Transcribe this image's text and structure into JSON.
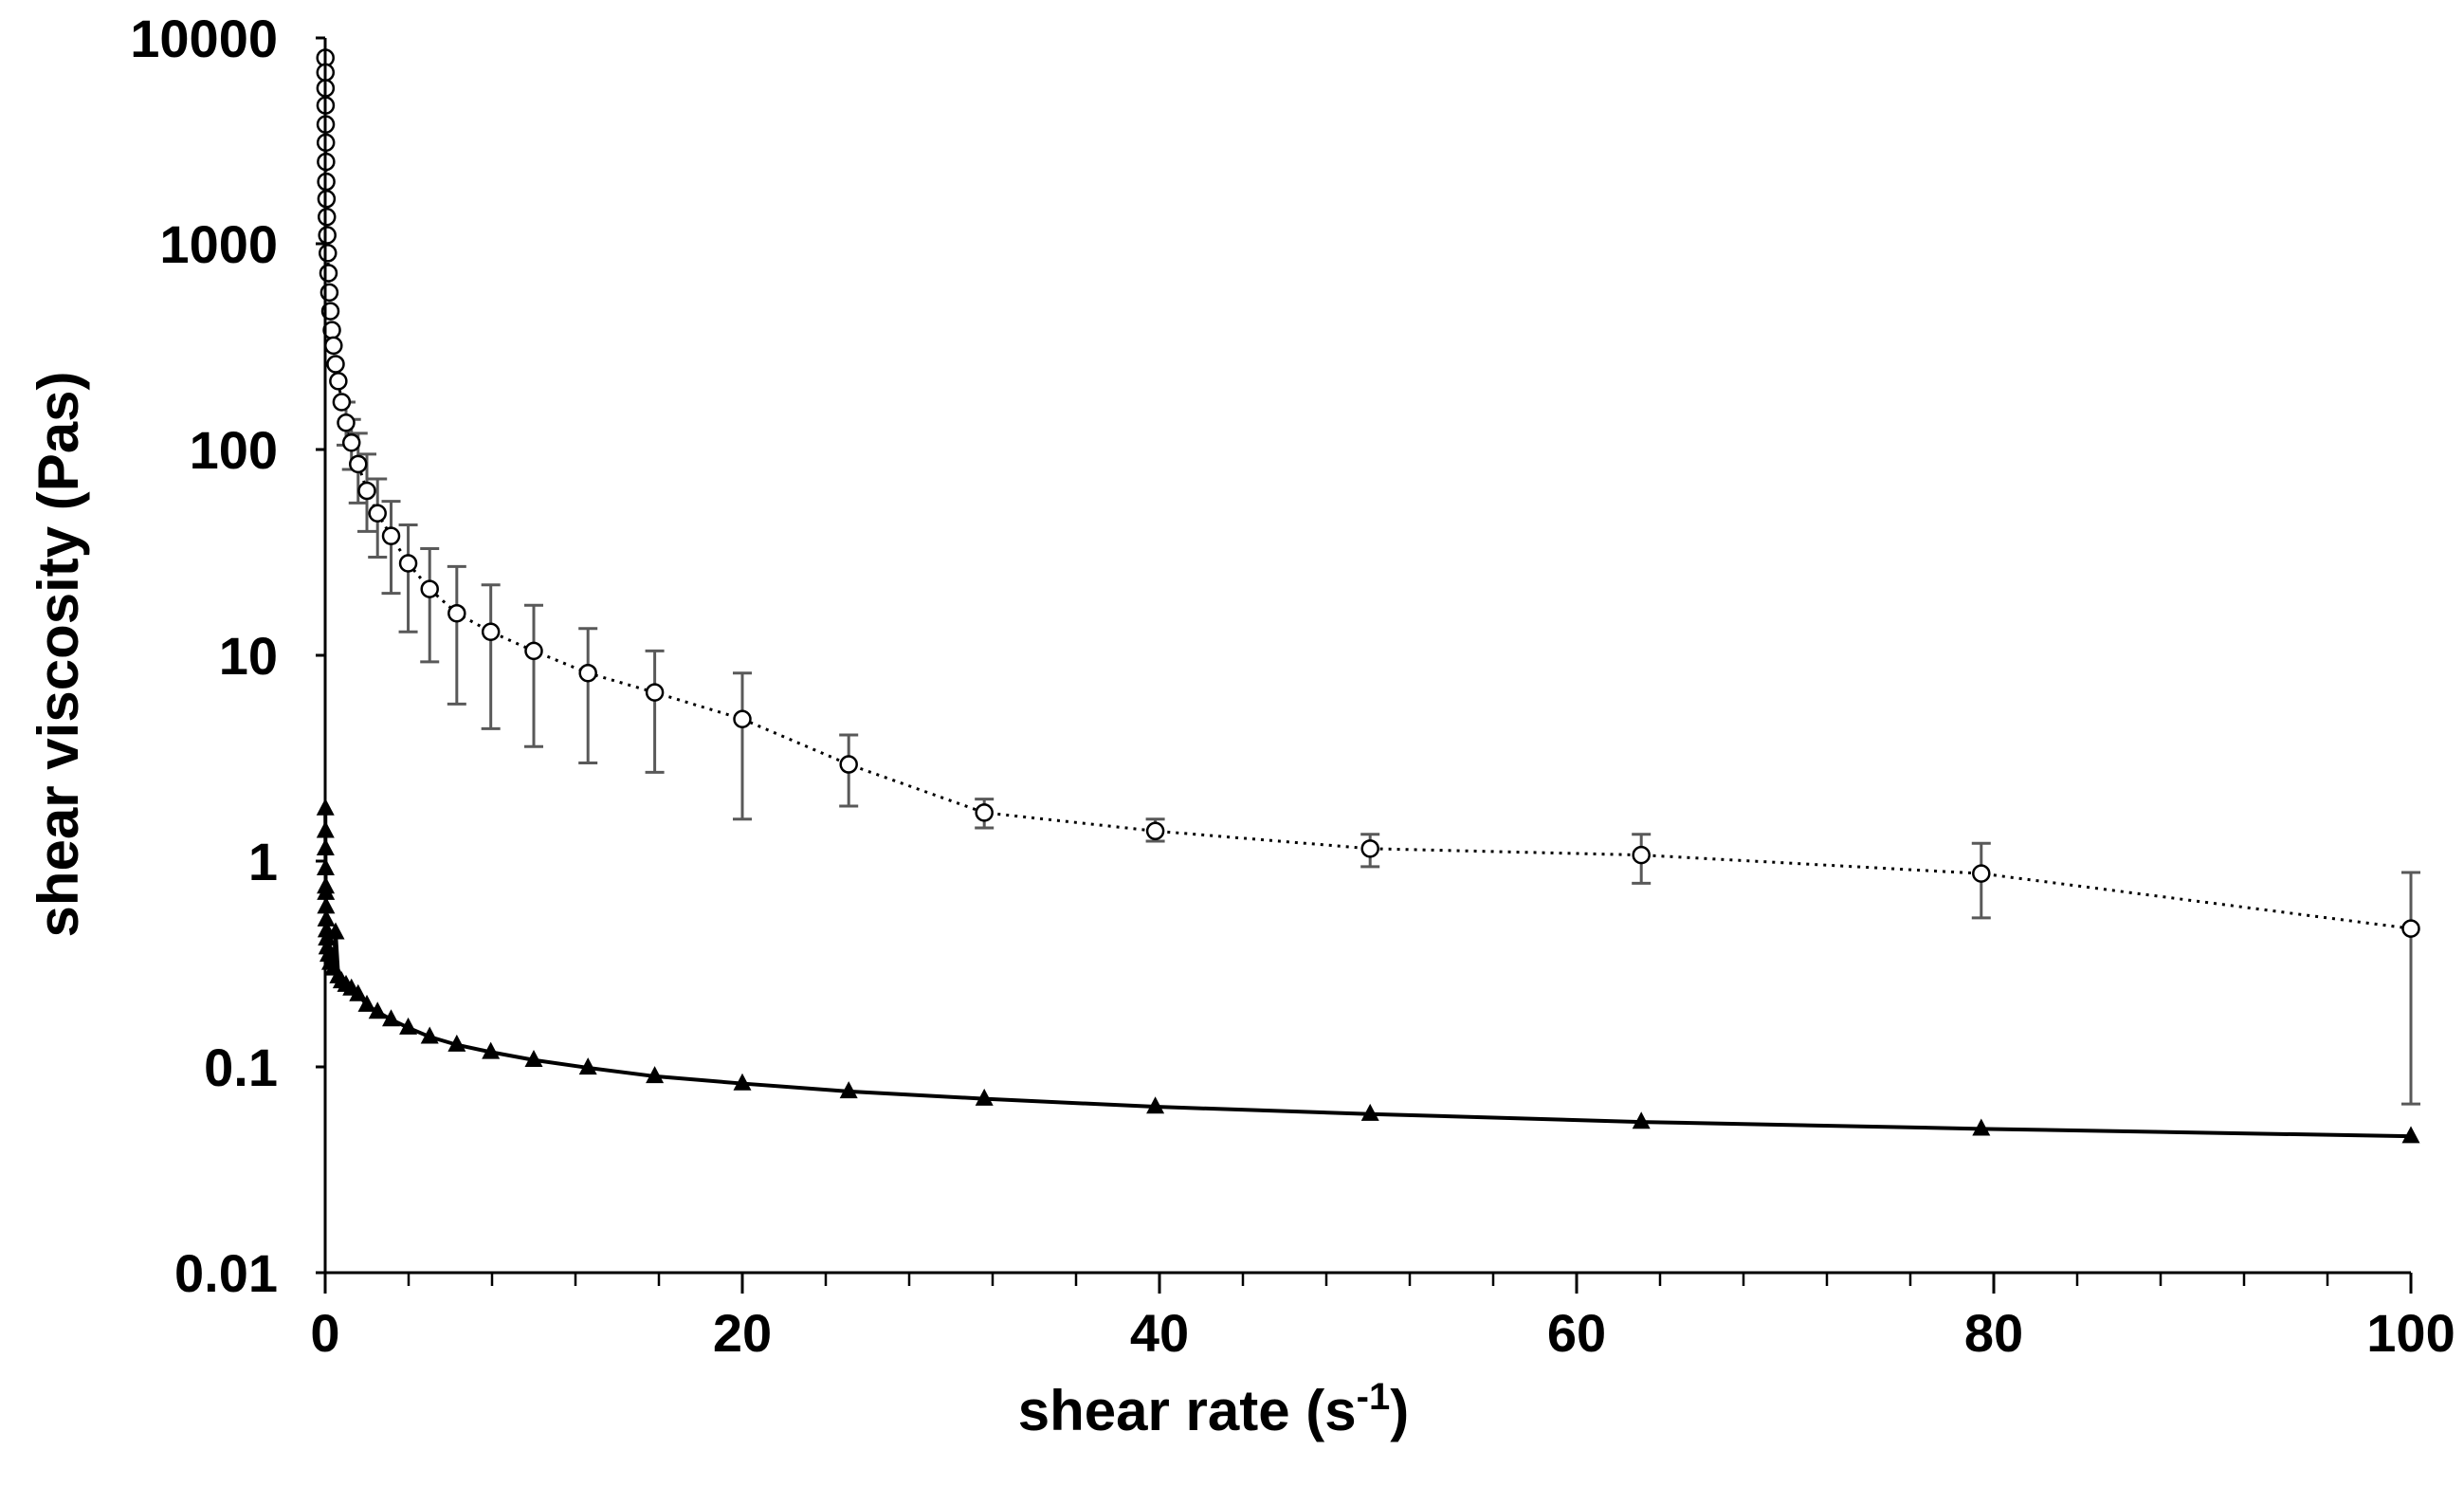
{
  "chart_data": {
    "type": "scatter",
    "xlabel": "shear rate (s",
    "xlabel_sup": "-1",
    "xlabel_tail": ")",
    "ylabel": "shear viscosity (Pas)",
    "xlim": [
      0,
      100
    ],
    "ylim": [
      0.01,
      10000
    ],
    "yscale": "log",
    "grid": false,
    "x_ticks": [
      "0",
      "20",
      "40",
      "60",
      "80",
      "100"
    ],
    "y_ticks": [
      "0.01",
      "0.1",
      "1",
      "10",
      "100",
      "1000",
      "10000"
    ],
    "series": [
      {
        "marker": "open-circle",
        "line": "dotted",
        "points": [
          {
            "x": 0.01,
            "y": 8000
          },
          {
            "x": 0.013,
            "y": 6800
          },
          {
            "x": 0.016,
            "y": 5700
          },
          {
            "x": 0.02,
            "y": 4700
          },
          {
            "x": 0.025,
            "y": 3800
          },
          {
            "x": 0.032,
            "y": 3100
          },
          {
            "x": 0.04,
            "y": 2500
          },
          {
            "x": 0.05,
            "y": 2000
          },
          {
            "x": 0.063,
            "y": 1650
          },
          {
            "x": 0.079,
            "y": 1350
          },
          {
            "x": 0.1,
            "y": 1100
          },
          {
            "x": 0.126,
            "y": 900
          },
          {
            "x": 0.158,
            "y": 720
          },
          {
            "x": 0.2,
            "y": 580
          },
          {
            "x": 0.25,
            "y": 470
          },
          {
            "x": 0.32,
            "y": 380
          },
          {
            "x": 0.4,
            "y": 320
          },
          {
            "x": 0.5,
            "y": 260
          },
          {
            "x": 0.63,
            "y": 215
          },
          {
            "x": 0.79,
            "y": 170
          },
          {
            "x": 1.0,
            "y": 135,
            "err": [
              105,
              170
            ]
          },
          {
            "x": 1.26,
            "y": 108,
            "err": [
              80,
              140
            ]
          },
          {
            "x": 1.58,
            "y": 85,
            "err": [
              55,
              120
            ]
          },
          {
            "x": 2.0,
            "y": 63,
            "err": [
              40,
              95
            ]
          },
          {
            "x": 2.51,
            "y": 49,
            "err": [
              30,
              72
            ]
          },
          {
            "x": 3.16,
            "y": 38,
            "err": [
              20,
              56
            ]
          },
          {
            "x": 3.98,
            "y": 28,
            "err": [
              13,
              43
            ]
          },
          {
            "x": 5.01,
            "y": 21,
            "err": [
              9.3,
              33
            ]
          },
          {
            "x": 6.31,
            "y": 16,
            "err": [
              5.8,
              27
            ]
          },
          {
            "x": 7.94,
            "y": 13,
            "err": [
              4.4,
              22
            ]
          },
          {
            "x": 10.0,
            "y": 10.5,
            "err": [
              3.6,
              17.5
            ]
          },
          {
            "x": 12.6,
            "y": 8.2,
            "err": [
              3.0,
              13.5
            ]
          },
          {
            "x": 15.8,
            "y": 6.6,
            "err": [
              2.7,
              10.5
            ]
          },
          {
            "x": 20.0,
            "y": 4.9,
            "err": [
              1.6,
              8.2
            ]
          },
          {
            "x": 25.1,
            "y": 2.95,
            "err": [
              1.85,
              4.1
            ]
          },
          {
            "x": 31.6,
            "y": 1.72,
            "err": [
              1.45,
              2.0
            ]
          },
          {
            "x": 39.8,
            "y": 1.4,
            "err": [
              1.25,
              1.6
            ]
          },
          {
            "x": 50.1,
            "y": 1.15,
            "err": [
              0.94,
              1.35
            ]
          },
          {
            "x": 63.1,
            "y": 1.07,
            "err": [
              0.78,
              1.35
            ]
          },
          {
            "x": 79.4,
            "y": 0.87,
            "err": [
              0.53,
              1.22
            ]
          },
          {
            "x": 100.0,
            "y": 0.47,
            "err": [
              0.066,
              0.88
            ]
          }
        ]
      },
      {
        "marker": "filled-triangle",
        "line": "solid",
        "points": [
          {
            "x": 0.01,
            "y": 1.8
          },
          {
            "x": 0.013,
            "y": 1.4
          },
          {
            "x": 0.016,
            "y": 1.15
          },
          {
            "x": 0.02,
            "y": 0.92
          },
          {
            "x": 0.025,
            "y": 0.75
          },
          {
            "x": 0.032,
            "y": 0.7
          },
          {
            "x": 0.04,
            "y": 0.6
          },
          {
            "x": 0.05,
            "y": 0.52
          },
          {
            "x": 0.063,
            "y": 0.46
          },
          {
            "x": 0.079,
            "y": 0.42
          },
          {
            "x": 0.1,
            "y": 0.38
          },
          {
            "x": 0.158,
            "y": 0.35
          },
          {
            "x": 0.25,
            "y": 0.32
          },
          {
            "x": 0.4,
            "y": 0.3
          },
          {
            "x": 0.5,
            "y": 0.45
          },
          {
            "x": 0.63,
            "y": 0.275
          },
          {
            "x": 0.79,
            "y": 0.26
          },
          {
            "x": 1.0,
            "y": 0.25
          },
          {
            "x": 1.26,
            "y": 0.24
          },
          {
            "x": 1.58,
            "y": 0.225
          },
          {
            "x": 2.0,
            "y": 0.2
          },
          {
            "x": 2.51,
            "y": 0.185
          },
          {
            "x": 3.16,
            "y": 0.17
          },
          {
            "x": 3.98,
            "y": 0.155
          },
          {
            "x": 5.01,
            "y": 0.14
          },
          {
            "x": 6.31,
            "y": 0.128
          },
          {
            "x": 7.94,
            "y": 0.118
          },
          {
            "x": 10.0,
            "y": 0.108
          },
          {
            "x": 12.6,
            "y": 0.099
          },
          {
            "x": 15.8,
            "y": 0.09
          },
          {
            "x": 20.0,
            "y": 0.083
          },
          {
            "x": 25.1,
            "y": 0.076
          },
          {
            "x": 31.6,
            "y": 0.07
          },
          {
            "x": 39.8,
            "y": 0.064
          },
          {
            "x": 50.1,
            "y": 0.059
          },
          {
            "x": 63.1,
            "y": 0.054
          },
          {
            "x": 79.4,
            "y": 0.05
          },
          {
            "x": 100.0,
            "y": 0.046
          }
        ]
      }
    ]
  }
}
